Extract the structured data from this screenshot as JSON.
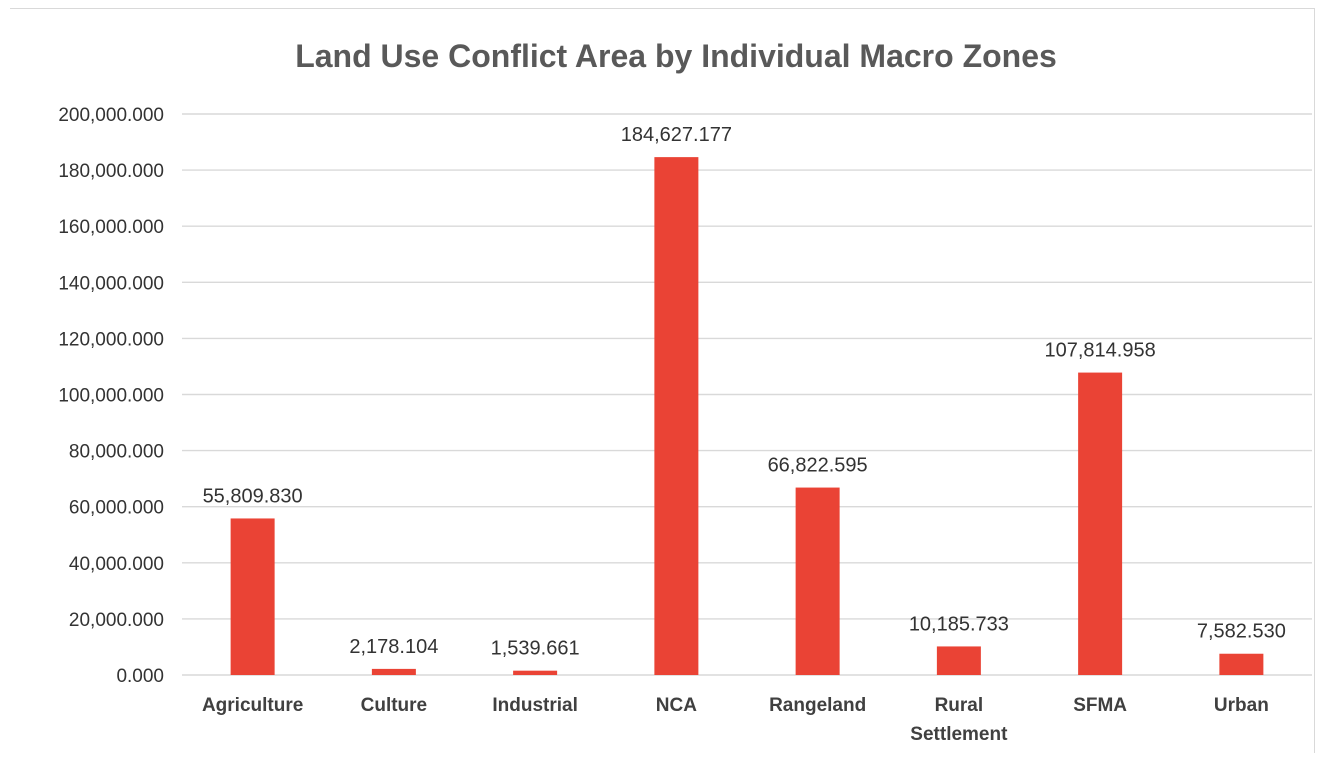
{
  "chart_data": {
    "type": "bar",
    "title": "Land Use Conflict Area by Individual Macro Zones",
    "xlabel": "",
    "ylabel": "",
    "categories": [
      [
        "Agriculture"
      ],
      [
        "Culture"
      ],
      [
        "Industrial"
      ],
      [
        "NCA"
      ],
      [
        "Rangeland"
      ],
      [
        "Rural",
        "Settlement"
      ],
      [
        "SFMA"
      ],
      [
        "Urban"
      ]
    ],
    "series": [
      {
        "values": [
          55809.83,
          2178.104,
          1539.661,
          184627.177,
          66822.595,
          10185.733,
          107814.958,
          7582.53
        ],
        "labels": [
          "55,809.830",
          "2,178.104",
          "1,539.661",
          "184,627.177",
          "66,822.595",
          "10,185.733",
          "107,814.958",
          "7,582.530"
        ]
      }
    ],
    "ylim": [
      0,
      200000
    ],
    "yticks": [
      0,
      20000,
      40000,
      60000,
      80000,
      100000,
      120000,
      140000,
      160000,
      180000,
      200000
    ],
    "ytick_labels": [
      "0.000",
      "20,000.000",
      "40,000.000",
      "60,000.000",
      "80,000.000",
      "100,000.000",
      "120,000.000",
      "140,000.000",
      "160,000.000",
      "180,000.000",
      "200,000.000"
    ],
    "bar_color": "#EA4335",
    "grid": true,
    "legend": "none"
  }
}
